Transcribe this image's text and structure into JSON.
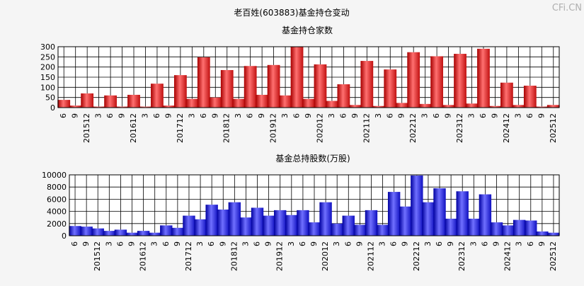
{
  "watermark": "CFi.CN",
  "title": "老百姓(603883)基金持仓变动",
  "colors": {
    "background": "#f5f5f5",
    "red": "#e02020",
    "blue": "#2020e0",
    "grid": "#000000"
  },
  "chart_data": [
    {
      "type": "bar",
      "title": "基金持仓家数",
      "ylim": [
        0,
        300
      ],
      "yticks": [
        0,
        50,
        100,
        150,
        200,
        250,
        300
      ],
      "categories": [
        "6",
        "9",
        "201512",
        "3",
        "6",
        "9",
        "201612",
        "3",
        "6",
        "9",
        "201712",
        "3",
        "6",
        "9",
        "201812",
        "3",
        "6",
        "9",
        "201912",
        "3",
        "6",
        "9",
        "202012",
        "3",
        "6",
        "9",
        "202112",
        "3",
        "6",
        "9",
        "202212",
        "3",
        "6",
        "9",
        "202312",
        "3",
        "6",
        "9",
        "202412",
        "3",
        "6",
        "9",
        "202512"
      ],
      "values": [
        38,
        10,
        70,
        5,
        60,
        5,
        63,
        5,
        118,
        10,
        160,
        43,
        248,
        50,
        185,
        43,
        205,
        63,
        210,
        60,
        300,
        43,
        213,
        33,
        115,
        13,
        230,
        8,
        188,
        23,
        273,
        18,
        253,
        13,
        265,
        20,
        290,
        8,
        123,
        13,
        108,
        5,
        13
      ],
      "color": "#e02020"
    },
    {
      "type": "bar",
      "title": "基金总持股数(万股)",
      "ylim": [
        0,
        10000
      ],
      "yticks": [
        0,
        2000,
        4000,
        6000,
        8000,
        10000
      ],
      "categories": [
        "6",
        "9",
        "201512",
        "3",
        "6",
        "9",
        "201612",
        "3",
        "6",
        "9",
        "201712",
        "3",
        "6",
        "9",
        "201812",
        "3",
        "6",
        "9",
        "201912",
        "3",
        "6",
        "9",
        "202012",
        "3",
        "6",
        "9",
        "202112",
        "3",
        "6",
        "9",
        "202212",
        "3",
        "6",
        "9",
        "202312",
        "3",
        "6",
        "9",
        "202412",
        "3",
        "6",
        "9",
        "202512"
      ],
      "values": [
        1600,
        1500,
        1200,
        800,
        1000,
        500,
        800,
        500,
        1700,
        1300,
        3300,
        2700,
        5100,
        4300,
        5500,
        3000,
        4600,
        3300,
        4200,
        3400,
        4200,
        2200,
        5500,
        2000,
        3300,
        1800,
        4200,
        1800,
        7200,
        4800,
        9900,
        5500,
        7800,
        2800,
        7300,
        2800,
        6800,
        2200,
        1700,
        2600,
        2500,
        700,
        500
      ],
      "color": "#2020e0"
    }
  ]
}
